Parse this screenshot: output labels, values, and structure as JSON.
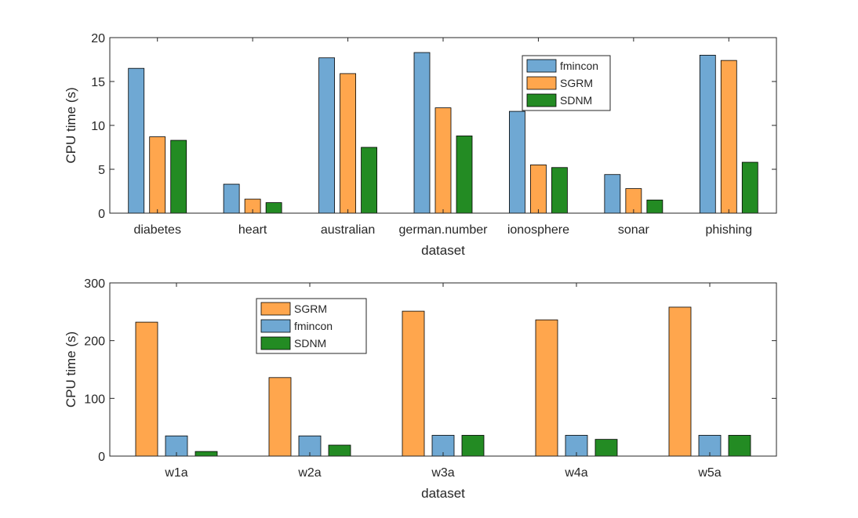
{
  "chart_data": [
    {
      "type": "bar",
      "title": "",
      "xlabel": "dataset",
      "ylabel": "CPU time (s)",
      "ylim": [
        0,
        20
      ],
      "yticks": [
        0,
        5,
        10,
        15,
        20
      ],
      "grid": false,
      "legend_position": "top-right",
      "categories": [
        "diabetes",
        "heart",
        "australian",
        "german.number",
        "ionosphere",
        "sonar",
        "phishing"
      ],
      "series": [
        {
          "name": "fmincon",
          "color": "#6fa8d3",
          "values": [
            16.5,
            3.3,
            17.7,
            18.3,
            11.6,
            4.4,
            18.0
          ]
        },
        {
          "name": "SGRM",
          "color": "#ffa64d",
          "values": [
            8.7,
            1.6,
            15.9,
            12.0,
            5.5,
            2.8,
            17.4
          ]
        },
        {
          "name": "SDNM",
          "color": "#238b23",
          "values": [
            8.3,
            1.2,
            7.5,
            8.8,
            5.2,
            1.5,
            5.8
          ]
        }
      ]
    },
    {
      "type": "bar",
      "title": "",
      "xlabel": "dataset",
      "ylabel": "CPU time (s)",
      "ylim": [
        0,
        300
      ],
      "yticks": [
        0,
        100,
        200,
        300
      ],
      "grid": false,
      "legend_position": "top-left",
      "categories": [
        "w1a",
        "w2a",
        "w3a",
        "w4a",
        "w5a"
      ],
      "series": [
        {
          "name": "SGRM",
          "color": "#ffa64d",
          "values": [
            232,
            136,
            251,
            236,
            258
          ]
        },
        {
          "name": "fmincon",
          "color": "#6fa8d3",
          "values": [
            35,
            35,
            36,
            36,
            36
          ]
        },
        {
          "name": "SDNM",
          "color": "#238b23",
          "values": [
            8,
            19,
            36,
            29,
            36
          ]
        }
      ]
    }
  ]
}
